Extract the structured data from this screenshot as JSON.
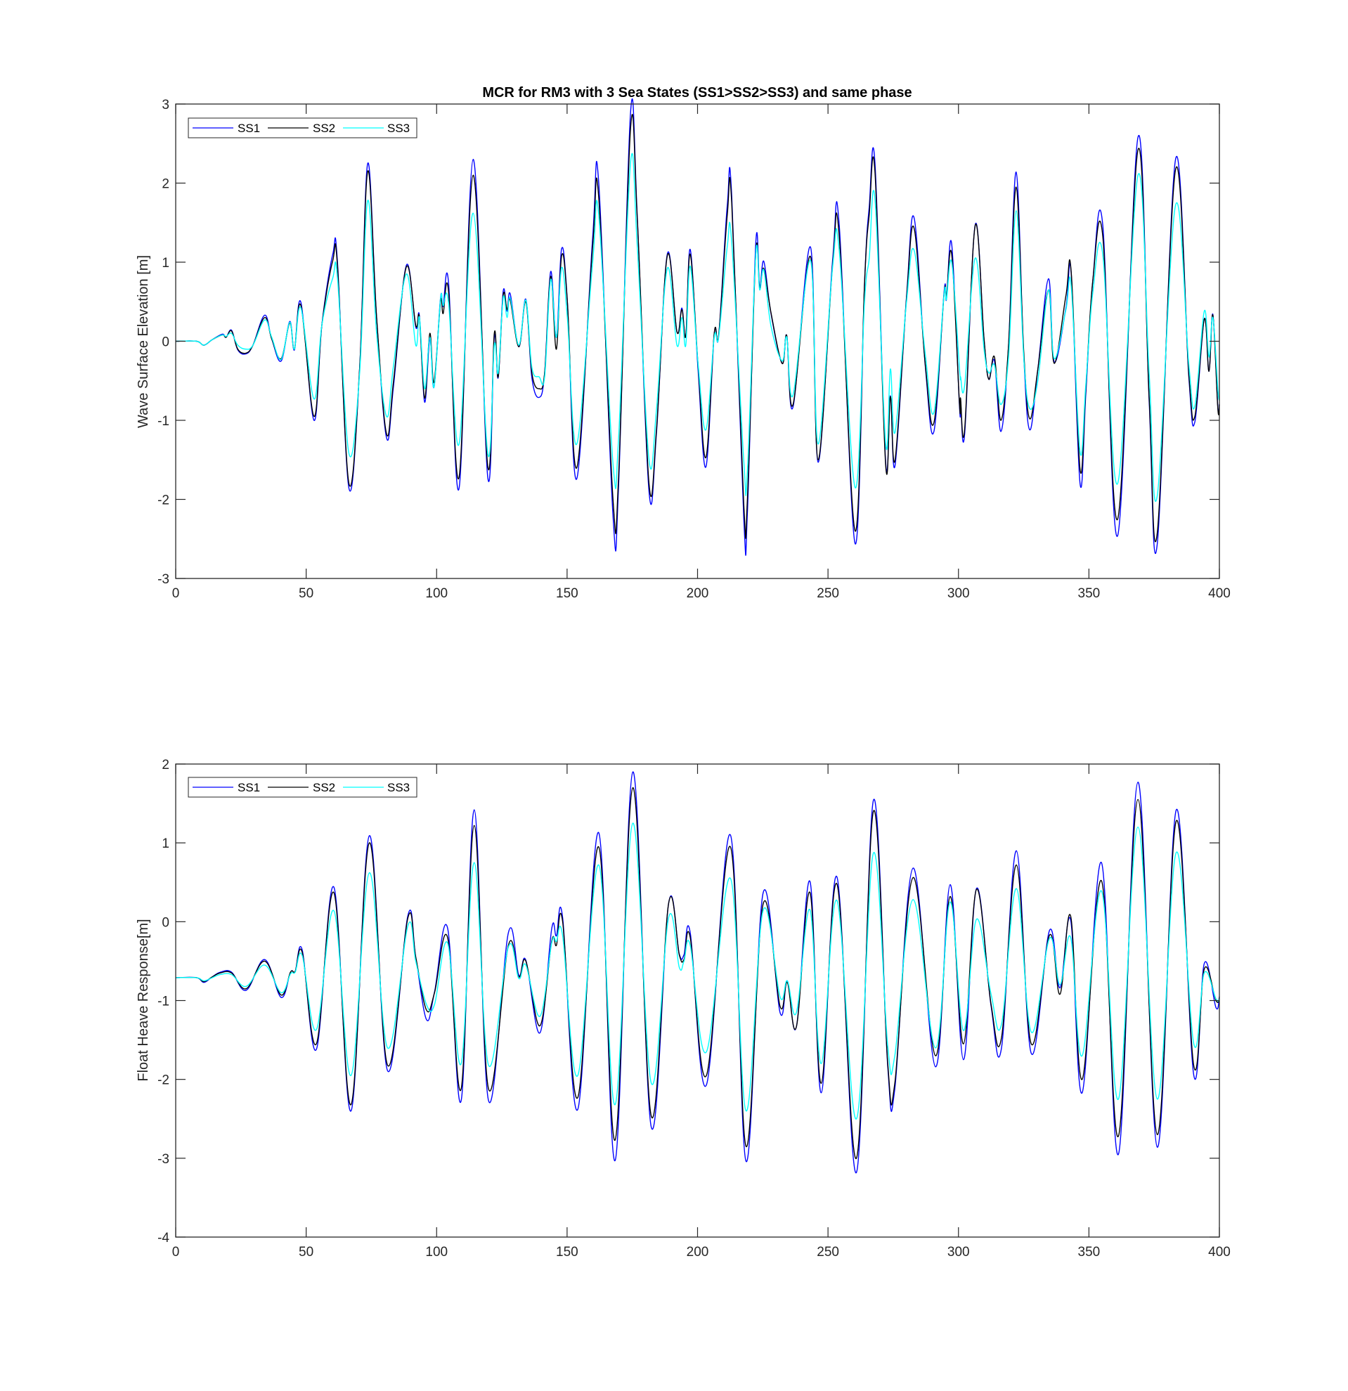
{
  "figure": {
    "title": "MCR for RM3 with 3 Sea States (SS1>SS2>SS3) and same phase"
  },
  "legend": {
    "entries": [
      "SS1",
      "SS2",
      "SS3"
    ]
  },
  "colors": {
    "SS1": "#0000ff",
    "SS2": "#000000",
    "SS3": "#00ffff",
    "axis": "#262626"
  },
  "chart_data": [
    {
      "type": "line",
      "title": "MCR for RM3 with 3 Sea States (SS1>SS2>SS3) and same phase",
      "xlabel": "",
      "ylabel": "Wave Surface Elevation [m]",
      "xlim": [
        0,
        400
      ],
      "ylim": [
        -3,
        3
      ],
      "xticks": [
        0,
        50,
        100,
        150,
        200,
        250,
        300,
        350,
        400
      ],
      "yticks": [
        -3,
        -2,
        -1,
        0,
        1,
        2,
        3
      ],
      "grid": false,
      "legend_position": "northwest",
      "legend": [
        "SS1",
        "SS2",
        "SS3"
      ],
      "x": [
        0,
        8,
        10.8,
        14,
        17.9,
        19.3,
        21.4,
        23.8,
        26.9,
        29.6,
        34.1,
        36.8,
        40.4,
        43.7,
        45.5,
        48,
        53,
        56,
        60.2,
        62,
        66.4,
        70.5,
        73.6,
        77,
        80.8,
        83.5,
        88.4,
        92,
        93.4,
        95.4,
        97.4,
        99,
        101.5,
        102.5,
        104.6,
        108.6,
        114,
        119.6,
        122.1,
        123.6,
        125.5,
        127,
        128.2,
        131.5,
        134.2,
        136.5,
        139.3,
        141.4,
        143.7,
        145.9,
        147.9,
        150.1,
        153.7,
        159.8,
        162.1,
        167.6,
        169.7,
        174.3,
        176.9,
        181.4,
        184.3,
        188.4,
        192.1,
        194,
        195.5,
        197.2,
        200.2,
        203.2,
        206.4,
        208.1,
        211.4,
        213.1,
        217.7,
        219.1,
        222.3,
        223.8,
        225.4,
        228.1,
        232.4,
        234.2,
        236.6,
        243.3,
        246.2,
        251.8,
        254.3,
        260.4,
        264,
        265.8,
        268,
        272.1,
        273.9,
        275.7,
        280.1,
        283,
        287.3,
        290.6,
        294.5,
        295.4,
        297.4,
        300.4,
        300.8,
        302.4,
        306.4,
        309.8,
        311.6,
        313.8,
        316.3,
        319.2,
        322.1,
        325,
        327.3,
        330.4,
        334.5,
        336.7,
        341.2,
        343.2,
        346.6,
        348.8,
        351.5,
        355.3,
        361,
        368.8,
        373.1,
        376.2,
        383.2,
        388.3,
        390.6,
        394.2,
        396,
        397.5,
        399.4,
        400
      ],
      "series": [
        {
          "name": "SS1",
          "values": [
            0,
            0,
            -0.05,
            0.02,
            0.09,
            0.05,
            0.14,
            -0.11,
            -0.16,
            -0.05,
            0.33,
            0.03,
            -0.25,
            0.25,
            -0.11,
            0.49,
            -1.0,
            0.2,
            1.1,
            1.0,
            -1.86,
            -0.34,
            2.25,
            0.3,
            -1.22,
            -0.56,
            0.96,
            0.18,
            0.32,
            -0.77,
            0.03,
            -0.58,
            0.55,
            0.44,
            0.73,
            -1.86,
            2.3,
            -1.72,
            0.05,
            -0.46,
            0.63,
            0.38,
            0.6,
            -0.07,
            0.53,
            -0.46,
            -0.71,
            -0.4,
            0.88,
            0.05,
            1.17,
            0.51,
            -1.74,
            1.31,
            2.02,
            -2.21,
            -1.86,
            2.88,
            1.58,
            -1.9,
            -1.14,
            1.1,
            0.12,
            0.42,
            0.07,
            1.16,
            -0.36,
            -1.59,
            0.09,
            0.07,
            1.72,
            1.84,
            -2.23,
            -2.17,
            1.23,
            0.69,
            1.01,
            0.36,
            -0.28,
            0.07,
            -0.83,
            1.19,
            -1.53,
            1.04,
            1.47,
            -2.56,
            0.73,
            1.7,
            2.25,
            -1.53,
            -0.69,
            -1.57,
            0.57,
            1.56,
            -0.32,
            -1.14,
            0.63,
            0.53,
            1.23,
            -0.83,
            -0.75,
            -1.16,
            1.47,
            0.03,
            -0.48,
            -0.25,
            -1.14,
            -0.05,
            2.14,
            -0.17,
            -1.12,
            -0.36,
            0.79,
            -0.26,
            0.42,
            0.86,
            -1.8,
            -0.67,
            0.77,
            1.47,
            -2.46,
            2.58,
            -0.77,
            -2.56,
            2.3,
            -0.46,
            -1.02,
            0.28,
            -0.38,
            0.34,
            -0.83,
            -0.8
          ]
        },
        {
          "name": "SS2",
          "values": [
            0,
            0,
            -0.05,
            0.02,
            0.08,
            0.05,
            0.13,
            -0.1,
            -0.15,
            -0.05,
            0.3,
            0.03,
            -0.22,
            0.23,
            -0.1,
            0.45,
            -0.95,
            0.2,
            1.02,
            0.95,
            -1.8,
            -0.34,
            2.15,
            0.3,
            -1.17,
            -0.5,
            0.94,
            0.2,
            0.3,
            -0.72,
            0.1,
            -0.52,
            0.5,
            0.35,
            0.62,
            -1.72,
            2.1,
            -1.58,
            0.1,
            -0.45,
            0.58,
            0.4,
            0.52,
            -0.07,
            0.5,
            -0.4,
            -0.6,
            -0.4,
            0.82,
            -0.1,
            1.08,
            0.5,
            -1.6,
            1.2,
            1.83,
            -2.0,
            -1.74,
            2.68,
            1.55,
            -1.8,
            -1.1,
            1.08,
            0.12,
            0.4,
            0.07,
            1.1,
            -0.3,
            -1.47,
            0.1,
            0.07,
            1.6,
            1.75,
            -2.05,
            -2.0,
            1.1,
            0.67,
            0.92,
            0.37,
            -0.28,
            0.07,
            -0.8,
            1.07,
            -1.5,
            0.98,
            1.33,
            -2.4,
            0.73,
            1.6,
            2.14,
            -1.57,
            -0.7,
            -1.5,
            0.55,
            1.43,
            -0.3,
            -1.03,
            0.6,
            0.55,
            1.1,
            -0.8,
            -0.72,
            -1.1,
            1.46,
            0.03,
            -0.48,
            -0.2,
            -1.0,
            -0.05,
            1.95,
            -0.12,
            -0.98,
            -0.36,
            0.65,
            -0.28,
            0.58,
            0.88,
            -1.62,
            -0.6,
            0.77,
            1.33,
            -2.25,
            2.42,
            -0.72,
            -2.42,
            2.17,
            -0.42,
            -0.95,
            0.28,
            -0.38,
            0.33,
            -0.85,
            -0.8
          ]
        },
        {
          "name": "SS3",
          "values": [
            0,
            0,
            -0.05,
            0.02,
            0.08,
            0.06,
            0.1,
            -0.05,
            -0.1,
            -0.05,
            0.27,
            0.05,
            -0.23,
            0.24,
            -0.1,
            0.42,
            -0.73,
            0.2,
            0.8,
            0.8,
            -1.42,
            -0.4,
            1.78,
            0.1,
            -0.95,
            -0.3,
            0.85,
            -0.05,
            0.3,
            -0.6,
            0.05,
            -0.58,
            0.54,
            0.45,
            0.48,
            -1.3,
            1.62,
            -1.42,
            -0.05,
            -0.4,
            0.55,
            0.3,
            0.55,
            -0.05,
            0.52,
            -0.33,
            -0.45,
            -0.45,
            0.78,
            0.05,
            0.93,
            0.3,
            -1.3,
            1.0,
            1.61,
            -1.55,
            -1.25,
            2.25,
            1.2,
            -1.5,
            -0.85,
            0.92,
            -0.05,
            0.3,
            -0.05,
            0.95,
            -0.28,
            -1.12,
            0.05,
            0.05,
            1.2,
            1.25,
            -1.5,
            -1.65,
            1.1,
            0.65,
            0.9,
            0.2,
            -0.25,
            0.05,
            -0.68,
            1.02,
            -1.3,
            0.95,
            1.15,
            -1.85,
            0.5,
            1.05,
            1.8,
            -1.3,
            -0.35,
            -1.15,
            0.5,
            1.15,
            -0.17,
            -0.9,
            0.6,
            0.53,
            1.0,
            -0.35,
            -0.45,
            -0.55,
            1.05,
            -0.1,
            -0.4,
            -0.3,
            -0.8,
            -0.2,
            1.65,
            -0.2,
            -0.85,
            -0.5,
            0.65,
            -0.22,
            0.4,
            0.7,
            -1.4,
            -0.55,
            0.62,
            1.1,
            -1.8,
            2.1,
            -0.42,
            -1.95,
            1.72,
            -0.3,
            -0.82,
            0.38,
            -0.2,
            0.3,
            -0.6,
            -0.75
          ]
        }
      ]
    },
    {
      "type": "line",
      "title": "",
      "xlabel": "",
      "ylabel": "Float Heave Response[m]",
      "xlim": [
        0,
        400
      ],
      "ylim": [
        -4,
        2
      ],
      "xticks": [
        0,
        50,
        100,
        150,
        200,
        250,
        300,
        350,
        400
      ],
      "yticks": [
        -4,
        -3,
        -2,
        -1,
        0,
        1,
        2
      ],
      "grid": false,
      "legend_position": "northwest",
      "legend": [
        "SS1",
        "SS2",
        "SS3"
      ],
      "x": [
        0,
        8,
        10.8,
        14,
        17.1,
        21.4,
        27,
        34.1,
        40.4,
        44,
        45.8,
        48.5,
        53.9,
        60.6,
        67.2,
        74.2,
        81.2,
        89,
        92,
        96.1,
        99.2,
        104.2,
        109.4,
        114.4,
        119.9,
        127.5,
        131.5,
        134.2,
        139.6,
        144.1,
        145.9,
        148.3,
        154.1,
        162.1,
        168.4,
        175.2,
        182.3,
        188.9,
        193,
        194.8,
        197.2,
        203.4,
        212.6,
        218.6,
        225.1,
        231.6,
        234.4,
        237.9,
        243.1,
        247.4,
        253.4,
        260.9,
        267.4,
        272.9,
        275.6,
        282.6,
        291.2,
        296.8,
        301.9,
        306.9,
        312.5,
        316.5,
        322.2,
        327.9,
        334.9,
        338.9,
        343,
        347.4,
        354.8,
        361.3,
        368.8,
        376.2,
        383.5,
        390.2,
        394.2,
        398.7,
        400
      ],
      "series": [
        {
          "name": "SS1",
          "values": [
            -0.71,
            -0.71,
            -0.77,
            -0.7,
            -0.64,
            -0.64,
            -0.87,
            -0.48,
            -0.96,
            -0.64,
            -0.63,
            -0.36,
            -1.62,
            0.44,
            -2.4,
            1.09,
            -1.89,
            0.08,
            -0.45,
            -1.24,
            -0.89,
            -0.08,
            -2.27,
            1.42,
            -2.27,
            -0.14,
            -0.68,
            -0.49,
            -1.41,
            -0.09,
            -0.18,
            0.05,
            -2.38,
            1.13,
            -3.03,
            1.9,
            -2.61,
            0.23,
            -0.41,
            -0.42,
            -0.14,
            -2.07,
            1.1,
            -3.04,
            0.36,
            -1.15,
            -0.75,
            -1.33,
            0.51,
            -2.17,
            0.57,
            -3.18,
            1.54,
            -1.84,
            -2.12,
            0.68,
            -1.84,
            0.47,
            -1.75,
            0.42,
            -1.07,
            -1.6,
            0.9,
            -1.67,
            -0.11,
            -0.84,
            0.02,
            -2.17,
            0.75,
            -2.95,
            1.77,
            -2.86,
            1.42,
            -1.95,
            -0.53,
            -1.09,
            -0.95
          ]
        },
        {
          "name": "SS2",
          "values": [
            -0.71,
            -0.71,
            -0.76,
            -0.7,
            -0.65,
            -0.65,
            -0.85,
            -0.5,
            -0.93,
            -0.64,
            -0.63,
            -0.39,
            -1.55,
            0.37,
            -2.32,
            1.0,
            -1.82,
            0.05,
            -0.45,
            -1.12,
            -0.9,
            -0.2,
            -2.12,
            1.22,
            -2.12,
            -0.3,
            -0.7,
            -0.5,
            -1.32,
            -0.25,
            -0.3,
            0.0,
            -2.23,
            0.95,
            -2.77,
            1.7,
            -2.47,
            0.23,
            -0.42,
            -0.48,
            -0.2,
            -1.95,
            0.95,
            -2.85,
            0.22,
            -1.07,
            -0.77,
            -1.33,
            0.37,
            -2.05,
            0.48,
            -3.0,
            1.4,
            -1.8,
            -2.05,
            0.56,
            -1.7,
            0.32,
            -1.55,
            0.41,
            -1.05,
            -1.47,
            0.72,
            -1.55,
            -0.17,
            -0.92,
            0.07,
            -2.0,
            0.52,
            -2.72,
            1.55,
            -2.7,
            1.28,
            -1.83,
            -0.6,
            -1.0,
            -0.97
          ]
        },
        {
          "name": "SS3",
          "values": [
            -0.71,
            -0.71,
            -0.75,
            -0.71,
            -0.67,
            -0.67,
            -0.82,
            -0.55,
            -0.9,
            -0.66,
            -0.64,
            -0.43,
            -1.37,
            0.14,
            -1.95,
            0.62,
            -1.6,
            -0.05,
            -0.5,
            -1.05,
            -1.05,
            -0.27,
            -1.8,
            0.75,
            -1.82,
            -0.32,
            -0.72,
            -0.55,
            -1.2,
            -0.27,
            -0.25,
            -0.18,
            -1.95,
            0.72,
            -2.32,
            1.25,
            -2.05,
            0.05,
            -0.58,
            -0.5,
            -0.3,
            -1.65,
            0.55,
            -2.4,
            0.14,
            -0.95,
            -0.75,
            -1.15,
            0.15,
            -1.8,
            0.27,
            -2.5,
            0.87,
            -1.58,
            -1.7,
            0.28,
            -1.6,
            0.25,
            -1.38,
            0.03,
            -0.92,
            -1.3,
            0.42,
            -1.4,
            -0.21,
            -0.8,
            -0.2,
            -1.7,
            0.39,
            -2.25,
            1.2,
            -2.25,
            0.88,
            -1.55,
            -0.65,
            -0.98,
            -0.98
          ]
        }
      ]
    }
  ]
}
